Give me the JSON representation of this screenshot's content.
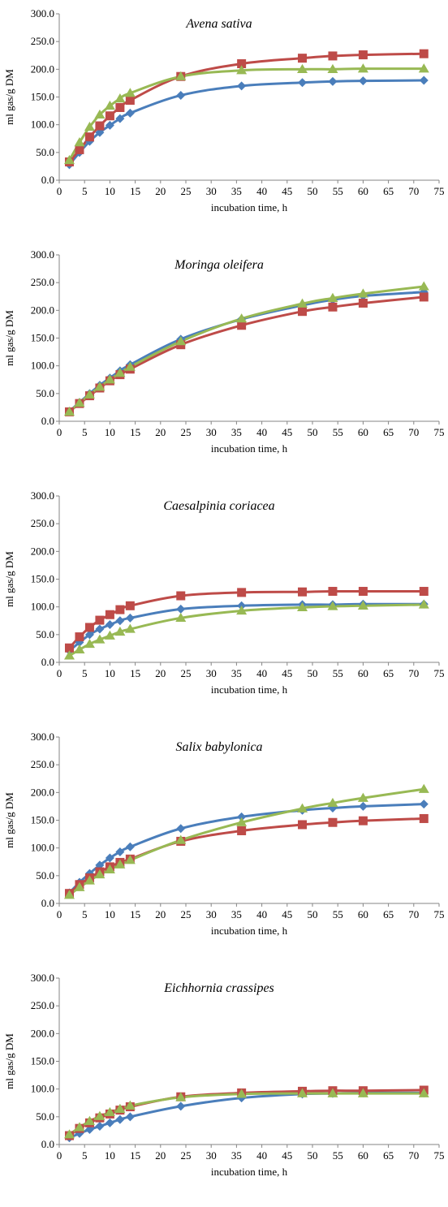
{
  "chart_data": [
    {
      "type": "line",
      "title": "Avena sativa",
      "xlabel": "incubation time, h",
      "ylabel": "ml gas/g DM",
      "xlim": [
        0,
        75
      ],
      "ylim": [
        0,
        300
      ],
      "x_ticks": [
        "0",
        "5",
        "10",
        "15",
        "20",
        "25",
        "30",
        "35",
        "40",
        "45",
        "50",
        "55",
        "60",
        "65",
        "70",
        "75"
      ],
      "y_ticks": [
        "0.0",
        "50.0",
        "100.0",
        "150.0",
        "200.0",
        "250.0",
        "300.0"
      ],
      "grid": false,
      "x": [
        2,
        4,
        6,
        8,
        10,
        12,
        14,
        24,
        36,
        48,
        54,
        60,
        72
      ],
      "series": [
        {
          "color": "#4A7EBB",
          "marker": "diamond",
          "values": [
            28,
            50,
            70,
            86,
            99,
            111,
            121,
            153,
            170,
            176,
            178,
            179,
            180
          ]
        },
        {
          "color": "#BE4B48",
          "marker": "square",
          "values": [
            33,
            55,
            78,
            98,
            116,
            131,
            144,
            187,
            210,
            220,
            224,
            226,
            228
          ]
        },
        {
          "color": "#98B954",
          "marker": "triangle",
          "values": [
            36,
            68,
            96,
            118,
            134,
            147,
            157,
            187,
            198,
            200,
            200,
            201,
            201
          ]
        }
      ]
    },
    {
      "type": "line",
      "title": "Moringa oleifera",
      "xlabel": "incubation time, h",
      "ylabel": "ml gas/g DM",
      "xlim": [
        0,
        75
      ],
      "ylim": [
        0,
        300
      ],
      "x_ticks": [
        "0",
        "5",
        "10",
        "15",
        "20",
        "25",
        "30",
        "35",
        "40",
        "45",
        "50",
        "55",
        "60",
        "65",
        "70",
        "75"
      ],
      "y_ticks": [
        "0.0",
        "50.0",
        "100.0",
        "150.0",
        "200.0",
        "250.0",
        "300.0"
      ],
      "grid": false,
      "x": [
        2,
        4,
        6,
        8,
        10,
        12,
        14,
        24,
        36,
        48,
        54,
        60,
        72
      ],
      "series": [
        {
          "color": "#4A7EBB",
          "marker": "diamond",
          "values": [
            18,
            34,
            50,
            65,
            78,
            91,
            102,
            148,
            184,
            209,
            219,
            226,
            233
          ]
        },
        {
          "color": "#BE4B48",
          "marker": "square",
          "values": [
            17,
            32,
            46,
            60,
            73,
            84,
            94,
            138,
            173,
            198,
            206,
            213,
            224
          ]
        },
        {
          "color": "#98B954",
          "marker": "triangle",
          "values": [
            17,
            33,
            48,
            62,
            75,
            87,
            98,
            144,
            185,
            212,
            222,
            230,
            243
          ]
        }
      ]
    },
    {
      "type": "line",
      "title": "Caesalpinia coriacea",
      "xlabel": "incubation time, h",
      "ylabel": "ml gas/g DM",
      "xlim": [
        0,
        75
      ],
      "ylim": [
        0,
        300
      ],
      "x_ticks": [
        "0",
        "5",
        "10",
        "15",
        "20",
        "25",
        "30",
        "35",
        "40",
        "45",
        "50",
        "55",
        "60",
        "65",
        "70",
        "75"
      ],
      "y_ticks": [
        "0.0",
        "50.0",
        "100.0",
        "150.0",
        "200.0",
        "250.0",
        "300.0"
      ],
      "grid": false,
      "x": [
        2,
        4,
        6,
        8,
        10,
        12,
        14,
        24,
        36,
        48,
        54,
        60,
        72
      ],
      "series": [
        {
          "color": "#4A7EBB",
          "marker": "diamond",
          "values": [
            21,
            36,
            50,
            60,
            68,
            75,
            80,
            96,
            102,
            104,
            104,
            105,
            105
          ]
        },
        {
          "color": "#BE4B48",
          "marker": "square",
          "values": [
            26,
            46,
            63,
            76,
            86,
            95,
            102,
            120,
            126,
            127,
            128,
            128,
            128
          ]
        },
        {
          "color": "#98B954",
          "marker": "triangle",
          "values": [
            12,
            23,
            33,
            41,
            48,
            55,
            60,
            80,
            93,
            99,
            101,
            102,
            104
          ]
        }
      ]
    },
    {
      "type": "line",
      "title": "Salix babylonica",
      "xlabel": "incubation time, h",
      "ylabel": "ml gas/g DM",
      "xlim": [
        0,
        75
      ],
      "ylim": [
        0,
        300
      ],
      "x_ticks": [
        "0",
        "5",
        "10",
        "15",
        "20",
        "25",
        "30",
        "35",
        "40",
        "45",
        "50",
        "55",
        "60",
        "65",
        "70",
        "75"
      ],
      "y_ticks": [
        "0.0",
        "50.0",
        "100.0",
        "150.0",
        "200.0",
        "250.0",
        "300.0"
      ],
      "grid": false,
      "x": [
        2,
        4,
        6,
        8,
        10,
        12,
        14,
        24,
        36,
        48,
        54,
        60,
        72
      ],
      "series": [
        {
          "color": "#4A7EBB",
          "marker": "diamond",
          "values": [
            19,
            38,
            54,
            69,
            82,
            93,
            102,
            135,
            156,
            168,
            172,
            175,
            179
          ]
        },
        {
          "color": "#BE4B48",
          "marker": "square",
          "values": [
            18,
            34,
            46,
            57,
            66,
            74,
            80,
            112,
            131,
            142,
            146,
            149,
            153
          ]
        },
        {
          "color": "#98B954",
          "marker": "triangle",
          "values": [
            15,
            29,
            41,
            52,
            61,
            70,
            78,
            114,
            146,
            171,
            181,
            190,
            206
          ]
        }
      ]
    },
    {
      "type": "line",
      "title": "Eichhornia crassipes",
      "xlabel": "incubation time, h",
      "ylabel": "ml gas/g DM",
      "xlim": [
        0,
        75
      ],
      "ylim": [
        0,
        300
      ],
      "x_ticks": [
        "0",
        "5",
        "10",
        "15",
        "20",
        "25",
        "30",
        "35",
        "40",
        "45",
        "50",
        "55",
        "60",
        "65",
        "70",
        "75"
      ],
      "y_ticks": [
        "0.0",
        "50.0",
        "100.0",
        "150.0",
        "200.0",
        "250.0",
        "300.0"
      ],
      "grid": false,
      "x": [
        2,
        4,
        6,
        8,
        10,
        12,
        14,
        24,
        36,
        48,
        54,
        60,
        72
      ],
      "series": [
        {
          "color": "#4A7EBB",
          "marker": "diamond",
          "values": [
            12,
            20,
            27,
            33,
            39,
            45,
            50,
            69,
            84,
            91,
            92,
            93,
            93
          ]
        },
        {
          "color": "#BE4B48",
          "marker": "square",
          "values": [
            16,
            29,
            39,
            48,
            55,
            62,
            68,
            86,
            93,
            96,
            97,
            97,
            98
          ]
        },
        {
          "color": "#98B954",
          "marker": "triangle",
          "values": [
            18,
            31,
            42,
            51,
            58,
            64,
            70,
            85,
            91,
            92,
            92,
            92,
            92
          ]
        }
      ]
    }
  ]
}
